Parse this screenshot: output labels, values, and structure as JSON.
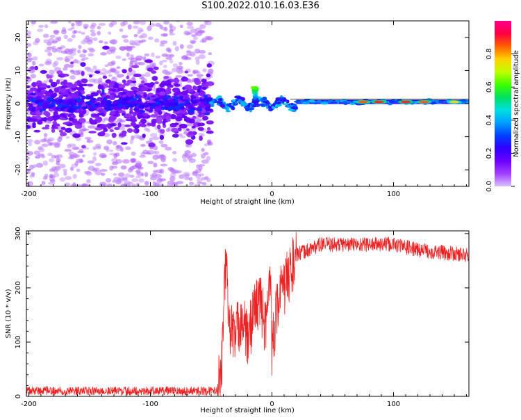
{
  "figure": {
    "title": "S100.2022.010.16.03.E36"
  },
  "colors": {
    "snr_line": "#ee2222",
    "colormap": [
      "#d9c0ff",
      "#a040ff",
      "#6a00ff",
      "#3000ff",
      "#0040ff",
      "#00a0ff",
      "#00e0e0",
      "#00e060",
      "#40ff00",
      "#c0ff00",
      "#ffd000",
      "#ff6000",
      "#ff0040",
      "#ff0090"
    ]
  },
  "chart_data": [
    {
      "type": "heatmap",
      "xlabel": "Height of straight line (km)",
      "ylabel": "Frequency (Hz)",
      "xlim": [
        -202,
        162
      ],
      "ylim": [
        -25,
        25
      ],
      "xticks": [
        -200,
        -100,
        0,
        100
      ],
      "yticks": [
        -20,
        -10,
        0,
        10,
        20
      ],
      "colorbar": {
        "label": "Normalized spectral amplitude",
        "range": [
          0.0,
          1.0
        ],
        "ticks": [
          0.0,
          0.2,
          0.4,
          0.6,
          0.8
        ]
      },
      "features": {
        "noise_region_x": [
          -200,
          -50
        ],
        "noise_spread_hz": 25,
        "dense_band_hz": 5,
        "transition_x": [
          -50,
          20
        ],
        "transition_peak": {
          "x": -14,
          "y": 5,
          "amplitude": 0.65
        },
        "tone_region_x": [
          20,
          162
        ],
        "tone_frequency_hz": 0.5,
        "tone_amplitude": 0.35,
        "tone_hotspots": [
          {
            "x": 75,
            "amplitude": 0.85
          },
          {
            "x": 88,
            "amplitude": 0.9
          },
          {
            "x": 110,
            "amplitude": 0.9
          },
          {
            "x": 125,
            "amplitude": 0.85
          },
          {
            "x": 150,
            "amplitude": 0.75
          }
        ]
      }
    },
    {
      "type": "line",
      "xlabel": "Height of straight line (km)",
      "ylabel": "SNR (10 * v/v)",
      "xlim": [
        -202,
        162
      ],
      "ylim": [
        0,
        305
      ],
      "xticks": [
        -200,
        -100,
        0,
        100
      ],
      "yticks": [
        0,
        100,
        200,
        300
      ],
      "series": [
        {
          "x": [
            -202,
            -150,
            -100,
            -50,
            -42,
            -38,
            -35,
            -30,
            -25,
            -20,
            -15,
            -10,
            -5,
            -1,
            0,
            5,
            10,
            15,
            20,
            30,
            40,
            60,
            80,
            100,
            120,
            140,
            162
          ],
          "values": [
            10,
            10,
            10,
            10,
            30,
            250,
            130,
            110,
            150,
            100,
            160,
            180,
            120,
            250,
            90,
            180,
            200,
            230,
            260,
            270,
            280,
            280,
            280,
            280,
            270,
            265,
            260
          ]
        }
      ]
    }
  ]
}
